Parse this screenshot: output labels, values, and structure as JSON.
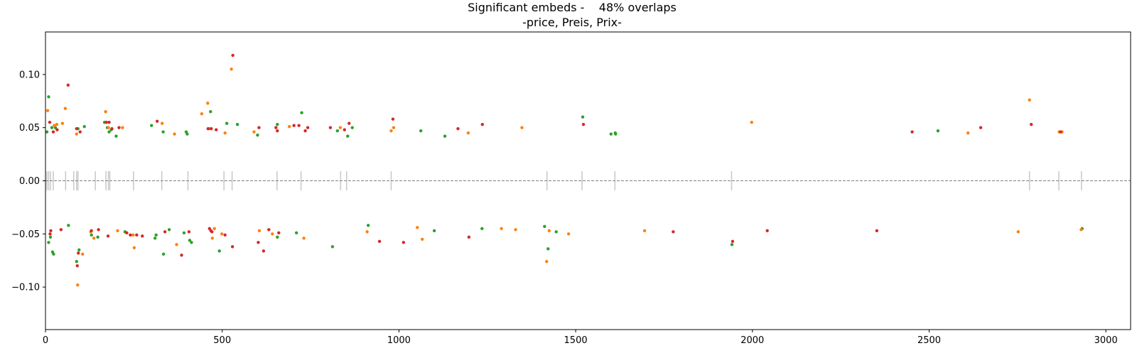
{
  "chart_data": {
    "type": "scatter",
    "title": "Significant embeds -    48% overlaps",
    "subtitle": "-price, Preis, Prix-",
    "xlabel": "",
    "ylabel": "",
    "xlim": [
      0,
      3070
    ],
    "ylim": [
      -0.14,
      0.14
    ],
    "x_ticks": [
      0,
      500,
      1000,
      1500,
      2000,
      2500,
      3000
    ],
    "x_tick_labels": [
      "0",
      "500",
      "1000",
      "1500",
      "2000",
      "2500",
      "3000"
    ],
    "y_ticks": [
      -0.1,
      -0.05,
      0.0,
      0.05,
      0.1
    ],
    "y_tick_labels": [
      "−0.10",
      "−0.05",
      "0.00",
      "0.05",
      "0.10"
    ],
    "grid": false,
    "legend": null,
    "zero_line": {
      "y": 0,
      "color": "#808080",
      "style": "dashed"
    },
    "overlap_markers": {
      "color": "#c8c8c8",
      "half_height": 0.009,
      "x": [
        4,
        9,
        14,
        22,
        57,
        80,
        88,
        92,
        141,
        171,
        178,
        182,
        249,
        329,
        403,
        505,
        528,
        655,
        723,
        835,
        852,
        978,
        1419,
        1518,
        1611,
        1941,
        2784,
        2867,
        2931
      ]
    },
    "series": [
      {
        "color": "#2ca02c",
        "points": [
          [
            4,
            0.046
          ],
          [
            9,
            0.079
          ],
          [
            18,
            0.05
          ],
          [
            28,
            0.05
          ],
          [
            92,
            0.049
          ],
          [
            110,
            0.051
          ],
          [
            167,
            0.055
          ],
          [
            175,
            0.05
          ],
          [
            180,
            0.046
          ],
          [
            186,
            0.048
          ],
          [
            200,
            0.042
          ],
          [
            300,
            0.052
          ],
          [
            333,
            0.046
          ],
          [
            398,
            0.046
          ],
          [
            401,
            0.044
          ],
          [
            467,
            0.065
          ],
          [
            513,
            0.054
          ],
          [
            543,
            0.053
          ],
          [
            600,
            0.043
          ],
          [
            656,
            0.053
          ],
          [
            725,
            0.064
          ],
          [
            826,
            0.047
          ],
          [
            855,
            0.042
          ],
          [
            868,
            0.05
          ],
          [
            1062,
            0.047
          ],
          [
            1130,
            0.042
          ],
          [
            1520,
            0.06
          ],
          [
            1600,
            0.044
          ],
          [
            1612,
            0.045
          ],
          [
            1613,
            0.044
          ],
          [
            2525,
            0.047
          ],
          [
            9,
            -0.058
          ],
          [
            14,
            -0.053
          ],
          [
            20,
            -0.067
          ],
          [
            23,
            -0.069
          ],
          [
            65,
            -0.042
          ],
          [
            88,
            -0.076
          ],
          [
            95,
            -0.065
          ],
          [
            130,
            -0.051
          ],
          [
            148,
            -0.053
          ],
          [
            225,
            -0.048
          ],
          [
            310,
            -0.054
          ],
          [
            313,
            -0.051
          ],
          [
            334,
            -0.069
          ],
          [
            350,
            -0.046
          ],
          [
            392,
            -0.049
          ],
          [
            408,
            -0.056
          ],
          [
            413,
            -0.058
          ],
          [
            492,
            -0.066
          ],
          [
            656,
            -0.053
          ],
          [
            710,
            -0.049
          ],
          [
            812,
            -0.062
          ],
          [
            913,
            -0.042
          ],
          [
            1100,
            -0.047
          ],
          [
            1235,
            -0.045
          ],
          [
            1412,
            -0.043
          ],
          [
            1422,
            -0.064
          ],
          [
            1445,
            -0.048
          ],
          [
            1942,
            -0.06
          ],
          [
            2933,
            -0.045
          ]
        ]
      },
      {
        "color": "#ff7f0e",
        "points": [
          [
            6,
            0.066
          ],
          [
            25,
            0.052
          ],
          [
            32,
            0.053
          ],
          [
            48,
            0.054
          ],
          [
            56,
            0.068
          ],
          [
            88,
            0.044
          ],
          [
            170,
            0.065
          ],
          [
            178,
            0.05
          ],
          [
            218,
            0.05
          ],
          [
            330,
            0.054
          ],
          [
            365,
            0.044
          ],
          [
            442,
            0.063
          ],
          [
            459,
            0.073
          ],
          [
            463,
            0.049
          ],
          [
            508,
            0.045
          ],
          [
            526,
            0.105
          ],
          [
            590,
            0.046
          ],
          [
            690,
            0.051
          ],
          [
            834,
            0.05
          ],
          [
            978,
            0.047
          ],
          [
            985,
            0.05
          ],
          [
            1196,
            0.045
          ],
          [
            1348,
            0.05
          ],
          [
            1998,
            0.055
          ],
          [
            2610,
            0.045
          ],
          [
            2784,
            0.076
          ],
          [
            2868,
            0.046
          ],
          [
            2876,
            0.046
          ],
          [
            91,
            -0.098
          ],
          [
            105,
            -0.069
          ],
          [
            128,
            -0.048
          ],
          [
            137,
            -0.054
          ],
          [
            204,
            -0.047
          ],
          [
            248,
            -0.051
          ],
          [
            251,
            -0.063
          ],
          [
            371,
            -0.06
          ],
          [
            472,
            -0.054
          ],
          [
            478,
            -0.045
          ],
          [
            499,
            -0.05
          ],
          [
            605,
            -0.047
          ],
          [
            642,
            -0.05
          ],
          [
            731,
            -0.054
          ],
          [
            910,
            -0.048
          ],
          [
            1052,
            -0.044
          ],
          [
            1066,
            -0.055
          ],
          [
            1290,
            -0.045
          ],
          [
            1330,
            -0.046
          ],
          [
            1418,
            -0.076
          ],
          [
            1425,
            -0.047
          ],
          [
            1480,
            -0.05
          ],
          [
            1695,
            -0.047
          ],
          [
            2752,
            -0.048
          ],
          [
            2930,
            -0.046
          ]
        ]
      },
      {
        "color": "#d62728",
        "points": [
          [
            12,
            0.055
          ],
          [
            22,
            0.046
          ],
          [
            33,
            0.048
          ],
          [
            64,
            0.09
          ],
          [
            88,
            0.049
          ],
          [
            98,
            0.046
          ],
          [
            172,
            0.055
          ],
          [
            180,
            0.055
          ],
          [
            188,
            0.049
          ],
          [
            208,
            0.05
          ],
          [
            316,
            0.056
          ],
          [
            460,
            0.049
          ],
          [
            469,
            0.049
          ],
          [
            483,
            0.048
          ],
          [
            530,
            0.118
          ],
          [
            604,
            0.05
          ],
          [
            652,
            0.05
          ],
          [
            656,
            0.047
          ],
          [
            703,
            0.052
          ],
          [
            717,
            0.052
          ],
          [
            735,
            0.047
          ],
          [
            742,
            0.05
          ],
          [
            806,
            0.05
          ],
          [
            846,
            0.048
          ],
          [
            859,
            0.054
          ],
          [
            983,
            0.058
          ],
          [
            1167,
            0.049
          ],
          [
            1236,
            0.053
          ],
          [
            1522,
            0.053
          ],
          [
            2452,
            0.046
          ],
          [
            2646,
            0.05
          ],
          [
            2789,
            0.053
          ],
          [
            2872,
            0.046
          ],
          [
            13,
            -0.05
          ],
          [
            15,
            -0.047
          ],
          [
            44,
            -0.046
          ],
          [
            90,
            -0.08
          ],
          [
            93,
            -0.068
          ],
          [
            130,
            -0.047
          ],
          [
            150,
            -0.046
          ],
          [
            177,
            -0.052
          ],
          [
            230,
            -0.049
          ],
          [
            240,
            -0.051
          ],
          [
            258,
            -0.051
          ],
          [
            274,
            -0.052
          ],
          [
            338,
            -0.048
          ],
          [
            385,
            -0.07
          ],
          [
            406,
            -0.048
          ],
          [
            464,
            -0.045
          ],
          [
            468,
            -0.047
          ],
          [
            471,
            -0.048
          ],
          [
            508,
            -0.051
          ],
          [
            529,
            -0.062
          ],
          [
            602,
            -0.058
          ],
          [
            617,
            -0.066
          ],
          [
            632,
            -0.046
          ],
          [
            660,
            -0.049
          ],
          [
            945,
            -0.057
          ],
          [
            1013,
            -0.058
          ],
          [
            1198,
            -0.053
          ],
          [
            1776,
            -0.048
          ],
          [
            1944,
            -0.057
          ],
          [
            2042,
            -0.047
          ],
          [
            2352,
            -0.047
          ]
        ]
      }
    ]
  }
}
